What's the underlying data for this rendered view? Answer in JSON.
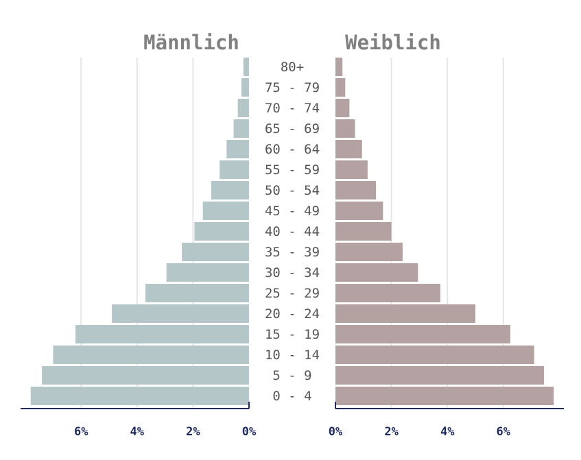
{
  "chart_data": {
    "type": "bar",
    "subtype": "population-pyramid",
    "panels": [
      {
        "title": "Männlich",
        "side": "left",
        "color": "#b4c6c8"
      },
      {
        "title": "Weiblich",
        "side": "right",
        "color": "#b3a2a1"
      }
    ],
    "categories": [
      "80+",
      "75 - 79",
      "70 - 74",
      "65 - 69",
      "60 - 64",
      "55 - 59",
      "50 - 54",
      "45 - 49",
      "40 - 44",
      "35 - 39",
      "30 - 34",
      "25 - 29",
      "20 - 24",
      "15 - 19",
      "10 - 14",
      "5 - 9",
      "0 - 4"
    ],
    "series": [
      {
        "name": "Männlich",
        "values": [
          0.2,
          0.27,
          0.4,
          0.55,
          0.8,
          1.05,
          1.35,
          1.65,
          1.95,
          2.4,
          2.95,
          3.7,
          4.9,
          6.2,
          7.0,
          7.4,
          7.8
        ]
      },
      {
        "name": "Weiblich",
        "values": [
          0.25,
          0.35,
          0.5,
          0.7,
          0.95,
          1.15,
          1.45,
          1.7,
          2.0,
          2.4,
          2.95,
          3.75,
          5.0,
          6.25,
          7.1,
          7.45,
          7.8
        ]
      }
    ],
    "xlim": [
      0,
      8
    ],
    "ticks": [
      0,
      2,
      4,
      6
    ],
    "tick_labels": [
      "0%",
      "2%",
      "4%",
      "6%"
    ],
    "grid": true,
    "axis_color": "#1f2a5c",
    "grid_color": "#e6e6e6"
  }
}
